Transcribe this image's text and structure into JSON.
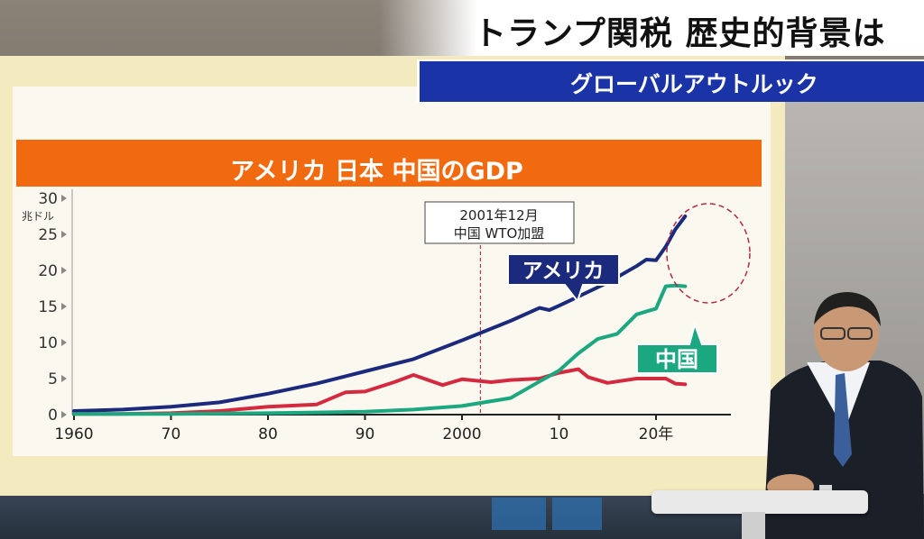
{
  "header": {
    "title": "トランプ関税 歴史的背景は",
    "subtitle": "グローバルアウトルック"
  },
  "chart_data": {
    "type": "line",
    "title": "アメリカ 日本 中国のGDP",
    "ylabel": "兆ドル",
    "ylim": [
      0,
      30
    ],
    "xlim": [
      1960,
      2024
    ],
    "yticks": [
      0,
      5,
      10,
      15,
      20,
      25,
      30
    ],
    "xticks": [
      {
        "value": 1960,
        "label": "1960"
      },
      {
        "value": 1970,
        "label": "70"
      },
      {
        "value": 1980,
        "label": "80"
      },
      {
        "value": 1990,
        "label": "90"
      },
      {
        "value": 2000,
        "label": "2000"
      },
      {
        "value": 2010,
        "label": "10"
      },
      {
        "value": 2020,
        "label": "20年"
      }
    ],
    "grid": false,
    "annotation": {
      "x": 2001.9,
      "line1": "2001年12月",
      "line2": "中国 WTO加盟"
    },
    "highlight": {
      "x": 2021.5,
      "y": 22,
      "note": "dashed circle"
    },
    "series": [
      {
        "name": "アメリカ",
        "label": "アメリカ",
        "color": "#1b2a7c",
        "x": [
          1960,
          1965,
          1970,
          1975,
          1980,
          1985,
          1990,
          1995,
          2000,
          2005,
          2008,
          2009,
          2010,
          2015,
          2018,
          2019,
          2020,
          2021,
          2022,
          2023
        ],
        "y": [
          0.5,
          0.7,
          1.1,
          1.7,
          2.9,
          4.3,
          6.0,
          7.7,
          10.3,
          13.0,
          14.8,
          14.5,
          15.1,
          18.3,
          20.6,
          21.5,
          21.4,
          23.3,
          25.7,
          27.5
        ]
      },
      {
        "name": "日本",
        "color": "#d42a3f",
        "x": [
          1960,
          1965,
          1970,
          1975,
          1980,
          1985,
          1988,
          1990,
          1993,
          1995,
          1998,
          2000,
          2003,
          2005,
          2008,
          2010,
          2012,
          2013,
          2015,
          2018,
          2020,
          2021,
          2022,
          2023
        ],
        "y": [
          0.1,
          0.1,
          0.2,
          0.5,
          1.1,
          1.4,
          3.1,
          3.2,
          4.5,
          5.5,
          4.1,
          4.9,
          4.5,
          4.8,
          5.0,
          5.8,
          6.3,
          5.2,
          4.4,
          5.0,
          5.0,
          5.0,
          4.3,
          4.2
        ]
      },
      {
        "name": "中国",
        "label": "中国",
        "color": "#1ba77f",
        "x": [
          1960,
          1970,
          1980,
          1985,
          1990,
          1995,
          2000,
          2005,
          2008,
          2010,
          2012,
          2014,
          2016,
          2018,
          2019,
          2020,
          2021,
          2022,
          2023
        ],
        "y": [
          0.1,
          0.1,
          0.2,
          0.3,
          0.4,
          0.7,
          1.2,
          2.3,
          4.6,
          6.1,
          8.5,
          10.5,
          11.2,
          13.9,
          14.3,
          14.7,
          17.8,
          17.9,
          17.8
        ]
      }
    ]
  }
}
